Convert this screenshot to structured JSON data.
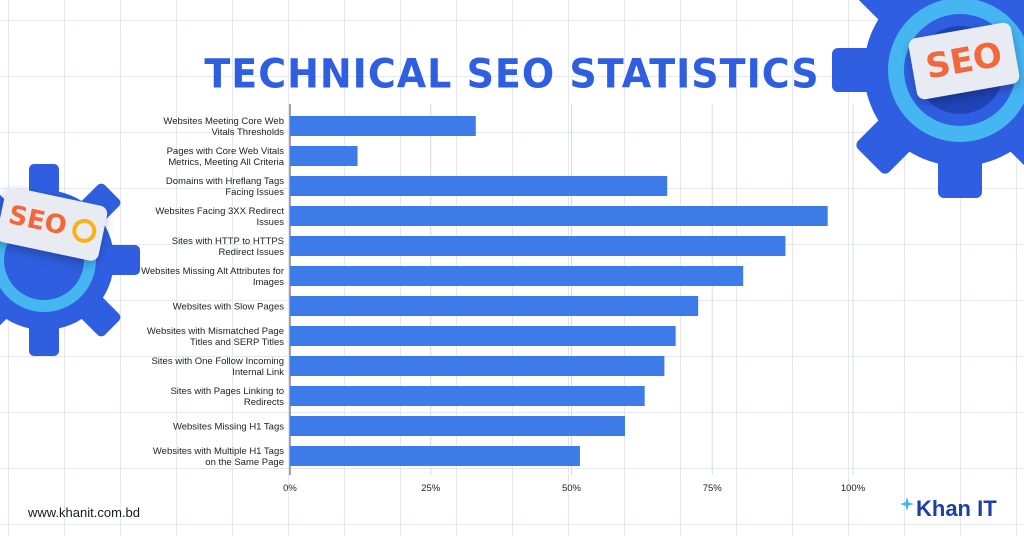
{
  "title": "TECHNICAL SEO STATISTICS",
  "website": "www.khanit.com.bd",
  "brand": {
    "name": "Khan IT"
  },
  "decor": {
    "badge_text": "SEO",
    "gear_color": "#2f5fe0",
    "ring_color": "#46b6f2"
  },
  "chart_data": {
    "type": "bar",
    "orientation": "horizontal",
    "categories": [
      [
        "Websites Meeting Core Web",
        "Vitals Thresholds"
      ],
      [
        "Pages with Core Web Vitals",
        "Metrics, Meeting All Criteria"
      ],
      [
        "Domains with Hreflang Tags",
        "Facing Issues"
      ],
      [
        "Websites Facing 3XX Redirect",
        "Issues"
      ],
      [
        "Sites with HTTP to HTTPS",
        "Redirect Issues"
      ],
      [
        "Websites Missing Alt Attributes for",
        "Images"
      ],
      [
        "Websites with Slow Pages"
      ],
      [
        "Websites with Mismatched Page",
        "Titles and SERP Titles"
      ],
      [
        "Sites with One Follow Incoming",
        "Internal Link"
      ],
      [
        "Sites with Pages Linking to",
        "Redirects"
      ],
      [
        "Websites Missing H1 Tags"
      ],
      [
        "Websites with Multiple H1 Tags",
        "on the Same Page"
      ]
    ],
    "values": [
      33,
      12,
      67,
      95.5,
      88,
      80.5,
      72.5,
      68.5,
      66.5,
      63,
      59.5,
      51.5
    ],
    "xlim": [
      0,
      100
    ],
    "xticks": [
      "0%",
      "25%",
      "50%",
      "75%",
      "100%"
    ],
    "xtick_values": [
      0,
      25,
      50,
      75,
      100
    ],
    "grid": true,
    "bar_color": "#3d7be8"
  }
}
